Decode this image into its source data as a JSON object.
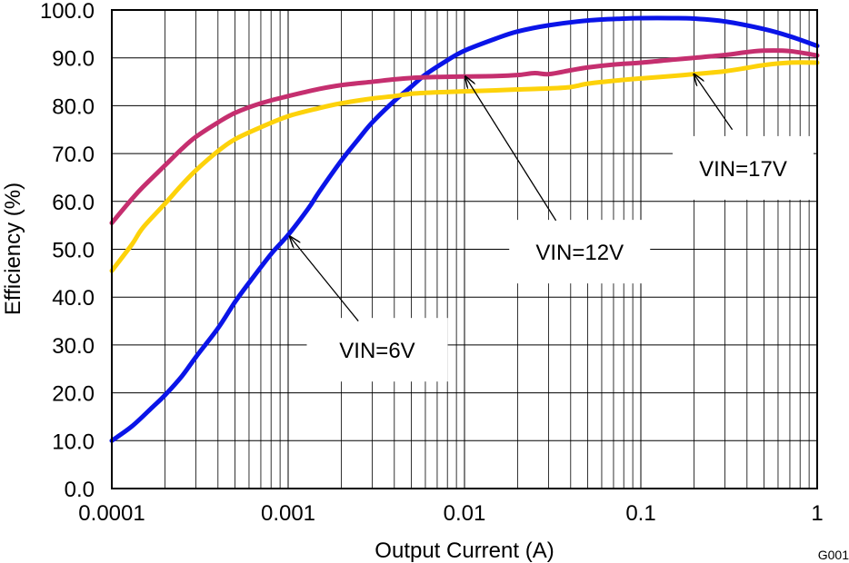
{
  "chart_data": {
    "type": "line",
    "xscale": "log",
    "xlim": [
      0.0001,
      1
    ],
    "ylim": [
      0,
      100
    ],
    "grid": true,
    "xlabel": "Output Current (A)",
    "ylabel": "Efficiency (%)",
    "figure_id": "G001",
    "x_ticks": [
      {
        "value": 0.0001,
        "label": "0.0001"
      },
      {
        "value": 0.001,
        "label": "0.001"
      },
      {
        "value": 0.01,
        "label": "0.01"
      },
      {
        "value": 0.1,
        "label": "0.1"
      },
      {
        "value": 1,
        "label": "1"
      }
    ],
    "y_ticks": [
      {
        "value": 0,
        "label": "0.0"
      },
      {
        "value": 10,
        "label": "10.0"
      },
      {
        "value": 20,
        "label": "20.0"
      },
      {
        "value": 30,
        "label": "30.0"
      },
      {
        "value": 40,
        "label": "40.0"
      },
      {
        "value": 50,
        "label": "50.0"
      },
      {
        "value": 60,
        "label": "60.0"
      },
      {
        "value": 70,
        "label": "70.0"
      },
      {
        "value": 80,
        "label": "80.0"
      },
      {
        "value": 90,
        "label": "90.0"
      },
      {
        "value": 100,
        "label": "100.0"
      }
    ],
    "series": [
      {
        "name": "VIN=6V",
        "color": "#0a14e8",
        "points": [
          [
            0.0001,
            10.0
          ],
          [
            0.00013,
            13.0
          ],
          [
            0.00017,
            17.0
          ],
          [
            0.0002,
            19.5
          ],
          [
            0.00025,
            23.5
          ],
          [
            0.0003,
            27.5
          ],
          [
            0.0004,
            33.5
          ],
          [
            0.0005,
            39.0
          ],
          [
            0.0006,
            43.0
          ],
          [
            0.0008,
            49.0
          ],
          [
            0.001,
            53.0
          ],
          [
            0.0013,
            58.5
          ],
          [
            0.0015,
            62.0
          ],
          [
            0.002,
            68.5
          ],
          [
            0.0025,
            73.0
          ],
          [
            0.003,
            76.5
          ],
          [
            0.004,
            81.0
          ],
          [
            0.005,
            84.0
          ],
          [
            0.006,
            86.5
          ],
          [
            0.008,
            89.5
          ],
          [
            0.01,
            91.5
          ],
          [
            0.015,
            94.0
          ],
          [
            0.02,
            95.5
          ],
          [
            0.03,
            96.8
          ],
          [
            0.05,
            97.8
          ],
          [
            0.08,
            98.2
          ],
          [
            0.1,
            98.3
          ],
          [
            0.15,
            98.3
          ],
          [
            0.2,
            98.2
          ],
          [
            0.3,
            97.6
          ],
          [
            0.5,
            96.0
          ],
          [
            0.7,
            94.5
          ],
          [
            1.0,
            92.5
          ]
        ]
      },
      {
        "name": "VIN=12V",
        "color": "#c52f6f",
        "points": [
          [
            0.0001,
            55.5
          ],
          [
            0.00013,
            60.5
          ],
          [
            0.00015,
            63.0
          ],
          [
            0.0002,
            67.5
          ],
          [
            0.00025,
            71.0
          ],
          [
            0.0003,
            73.5
          ],
          [
            0.0004,
            76.5
          ],
          [
            0.0005,
            78.5
          ],
          [
            0.0007,
            80.5
          ],
          [
            0.001,
            82.0
          ],
          [
            0.0015,
            83.5
          ],
          [
            0.002,
            84.3
          ],
          [
            0.003,
            85.0
          ],
          [
            0.004,
            85.5
          ],
          [
            0.005,
            85.8
          ],
          [
            0.007,
            86.0
          ],
          [
            0.01,
            86.1
          ],
          [
            0.015,
            86.2
          ],
          [
            0.02,
            86.4
          ],
          [
            0.025,
            86.8
          ],
          [
            0.03,
            86.6
          ],
          [
            0.04,
            87.4
          ],
          [
            0.05,
            88.0
          ],
          [
            0.07,
            88.6
          ],
          [
            0.1,
            89.0
          ],
          [
            0.15,
            89.6
          ],
          [
            0.2,
            90.0
          ],
          [
            0.3,
            90.6
          ],
          [
            0.4,
            91.2
          ],
          [
            0.5,
            91.5
          ],
          [
            0.7,
            91.4
          ],
          [
            1.0,
            90.5
          ]
        ]
      },
      {
        "name": "VIN=17V",
        "color": "#fdd20a",
        "points": [
          [
            0.0001,
            45.5
          ],
          [
            0.00013,
            51.0
          ],
          [
            0.00015,
            54.5
          ],
          [
            0.0002,
            59.5
          ],
          [
            0.00025,
            63.5
          ],
          [
            0.0003,
            66.5
          ],
          [
            0.0004,
            70.5
          ],
          [
            0.0005,
            73.0
          ],
          [
            0.0007,
            75.5
          ],
          [
            0.001,
            77.8
          ],
          [
            0.0015,
            79.5
          ],
          [
            0.002,
            80.5
          ],
          [
            0.003,
            81.5
          ],
          [
            0.004,
            82.0
          ],
          [
            0.005,
            82.5
          ],
          [
            0.007,
            82.8
          ],
          [
            0.01,
            83.0
          ],
          [
            0.015,
            83.2
          ],
          [
            0.02,
            83.4
          ],
          [
            0.03,
            83.6
          ],
          [
            0.04,
            83.9
          ],
          [
            0.05,
            84.6
          ],
          [
            0.07,
            85.2
          ],
          [
            0.1,
            85.7
          ],
          [
            0.15,
            86.2
          ],
          [
            0.2,
            86.6
          ],
          [
            0.3,
            87.2
          ],
          [
            0.4,
            87.9
          ],
          [
            0.5,
            88.5
          ],
          [
            0.7,
            89.0
          ],
          [
            1.0,
            89.0
          ]
        ]
      }
    ],
    "annotations": [
      {
        "text": "VIN=6V",
        "label_at": [
          0.0032,
          29.0
        ],
        "arrow_from": [
          0.0025,
          35.0
        ],
        "arrow_to": [
          0.00102,
          52.7
        ]
      },
      {
        "text": "VIN=12V",
        "label_at": [
          0.045,
          49.5
        ],
        "arrow_from": [
          0.033,
          56.0
        ],
        "arrow_to": [
          0.0101,
          86.1
        ]
      },
      {
        "text": "VIN=17V",
        "label_at": [
          0.38,
          67.0
        ],
        "arrow_from": [
          0.33,
          75.0
        ],
        "arrow_to": [
          0.2,
          86.6
        ]
      }
    ]
  }
}
